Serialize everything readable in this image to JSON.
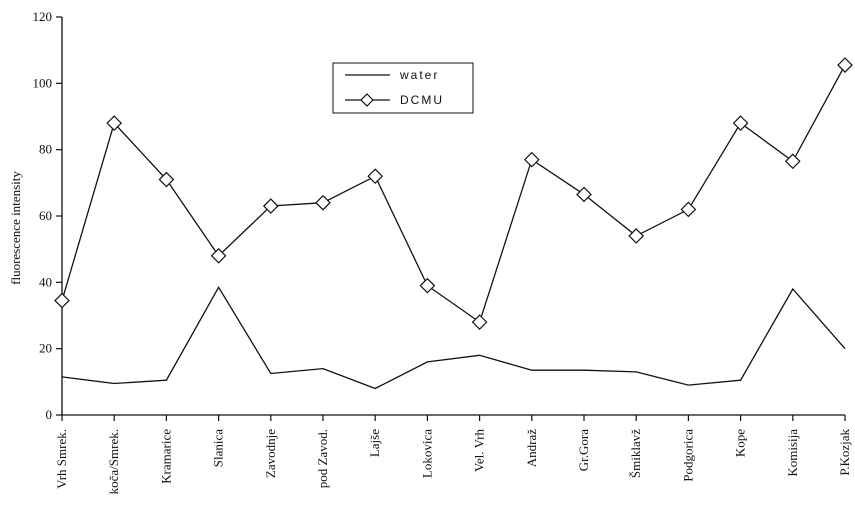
{
  "chart_data": {
    "type": "line",
    "ylabel": "fluorescence intensity",
    "xlabel": "",
    "ylim": [
      0,
      120
    ],
    "yticks": [
      0,
      20,
      40,
      60,
      80,
      100,
      120
    ],
    "grid": false,
    "legend_position": "top-center",
    "categories": [
      "Vrh Smrek.",
      "koča/Smrek.",
      "Kramarice",
      "Slanica",
      "Zavodnje",
      "pod Zavod.",
      "Lajše",
      "Lokovica",
      "Vel. Vrh",
      "Andraž",
      "Gr.Gora",
      "Šmiklavž",
      "Podgorica",
      "Kope",
      "Komisija",
      "P.Kozjak"
    ],
    "series": [
      {
        "name": "water",
        "marker": "none",
        "color": "#111111",
        "values": [
          11.5,
          9.5,
          10.5,
          38.5,
          12.5,
          14,
          8,
          16,
          18,
          13.5,
          13.5,
          13,
          9,
          10.5,
          38,
          20
        ]
      },
      {
        "name": "DCMU",
        "marker": "diamond",
        "color": "#111111",
        "values": [
          34.5,
          88,
          71,
          48,
          63,
          64,
          72,
          39,
          28,
          77,
          66.5,
          54,
          62,
          88,
          76.5,
          105.5
        ]
      }
    ]
  }
}
